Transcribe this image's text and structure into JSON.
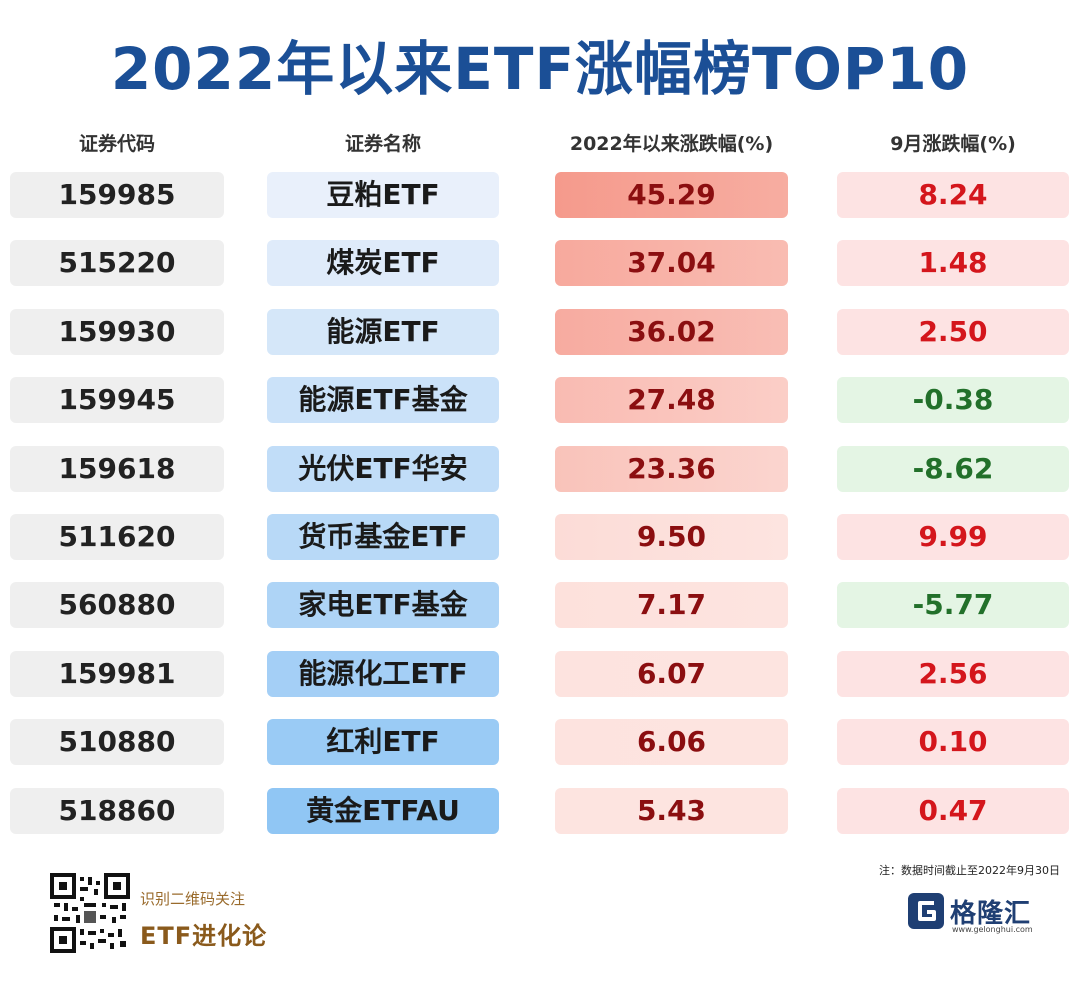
{
  "title": "2022年以来ETF涨幅榜TOP10",
  "chart_data": {
    "type": "table",
    "title": "2022年以来ETF涨幅榜TOP10",
    "columns": [
      "证券代码",
      "证券名称",
      "2022年以来涨跌幅(%)",
      "9月涨跌幅(%)"
    ],
    "rows": [
      {
        "code": "159985",
        "name": "豆粕ETF",
        "ytd": "45.29",
        "sep": "8.24"
      },
      {
        "code": "515220",
        "name": "煤炭ETF",
        "ytd": "37.04",
        "sep": "1.48"
      },
      {
        "code": "159930",
        "name": "能源ETF",
        "ytd": "36.02",
        "sep": "2.50"
      },
      {
        "code": "159945",
        "name": "能源ETF基金",
        "ytd": "27.48",
        "sep": "-0.38"
      },
      {
        "code": "159618",
        "name": "光伏ETF华安",
        "ytd": "23.36",
        "sep": "-8.62"
      },
      {
        "code": "511620",
        "name": "货币基金ETF",
        "ytd": "9.50",
        "sep": "9.99"
      },
      {
        "code": "560880",
        "name": "家电ETF基金",
        "ytd": "7.17",
        "sep": "-5.77"
      },
      {
        "code": "159981",
        "name": "能源化工ETF",
        "ytd": "6.07",
        "sep": "2.56"
      },
      {
        "code": "510880",
        "name": "红利ETF",
        "ytd": "6.06",
        "sep": "0.10"
      },
      {
        "code": "518860",
        "name": "黄金ETFAU",
        "ytd": "5.43",
        "sep": "0.47"
      }
    ]
  },
  "colors": {
    "title": "#1b4f96",
    "positive_text": "#d4161c",
    "negative_text": "#22702a",
    "positive_bg": "#fde3e3",
    "negative_bg": "#e4f5e4",
    "ytd_high": "#f59a8c",
    "ytd_low": "#fde4e0",
    "name_light": "#e9f0fb",
    "name_dark": "#90c6f4"
  },
  "footer": {
    "note": "注：数据时间截止至2022年9月30日",
    "qr_caption": "识别二维码关注",
    "brand": "ETF进化论",
    "logo_text": "格隆汇",
    "logo_url": "www.gelonghui.com"
  }
}
